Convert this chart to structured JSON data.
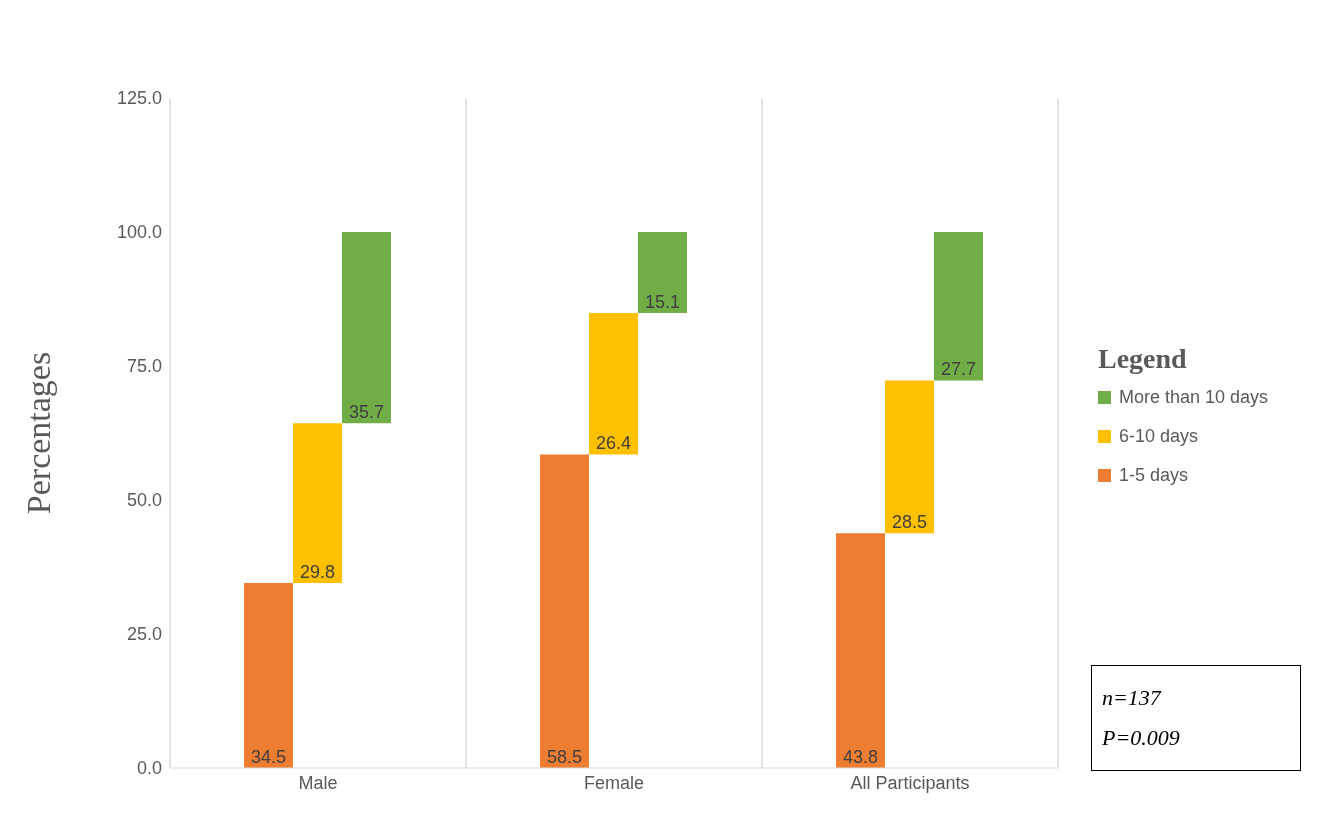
{
  "chart_data": {
    "type": "bar",
    "ylabel": "Percentages",
    "legend_title": "Legend",
    "categories": [
      "Male",
      "Female",
      "All Participants"
    ],
    "series": [
      {
        "name": "1-5 days",
        "color": "#ed7d31",
        "values": [
          34.5,
          58.5,
          43.8
        ],
        "base": [
          0,
          0,
          0
        ]
      },
      {
        "name": "6-10 days",
        "color": "#ffc000",
        "values": [
          29.8,
          26.4,
          28.5
        ],
        "base": [
          34.5,
          58.5,
          43.8
        ]
      },
      {
        "name": "More than 10 days",
        "color": "#70ad47",
        "values": [
          35.7,
          15.1,
          27.7
        ],
        "base": [
          64.3,
          84.9,
          72.3
        ]
      }
    ],
    "ylim": [
      0,
      125
    ],
    "yticks": [
      {
        "value": 0,
        "label": "0.0"
      },
      {
        "value": 25,
        "label": "25.0"
      },
      {
        "value": 50,
        "label": "50.0"
      },
      {
        "value": 75,
        "label": "75.0"
      },
      {
        "value": 100,
        "label": "100.0"
      },
      {
        "value": 125,
        "label": "125.0"
      }
    ],
    "grid": "x",
    "legend": "right",
    "data_labels": true,
    "annotations": [
      "n=137",
      "P=0.009"
    ]
  }
}
